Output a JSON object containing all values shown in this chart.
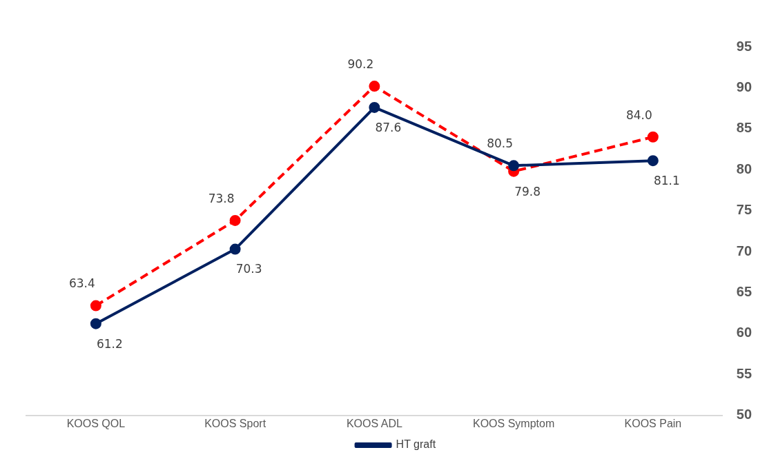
{
  "chart_data": {
    "type": "line",
    "categories": [
      "KOOS QOL",
      "KOOS Sport",
      "KOOS ADL",
      "KOOS Symptom",
      "KOOS Pain"
    ],
    "series": [
      {
        "name": "HT graft",
        "color": "#002060",
        "values": [
          61.2,
          70.3,
          87.6,
          80.5,
          81.1
        ],
        "value_labels": [
          "61.2",
          "70.3",
          "87.6",
          "80.5",
          "81.1"
        ],
        "line_style": "solid"
      },
      {
        "color": "#ff0000",
        "values": [
          63.4,
          73.8,
          90.2,
          79.8,
          84.0
        ],
        "value_labels": [
          "63.4",
          "73.8",
          "90.2",
          "79.8",
          "84.0"
        ],
        "line_style": "dashed"
      }
    ],
    "ylim": [
      50,
      95
    ],
    "yticks": [
      50,
      55,
      60,
      65,
      70,
      75,
      80,
      85,
      90,
      95
    ],
    "grid": false,
    "legend": "bottom",
    "marker": "circle"
  }
}
